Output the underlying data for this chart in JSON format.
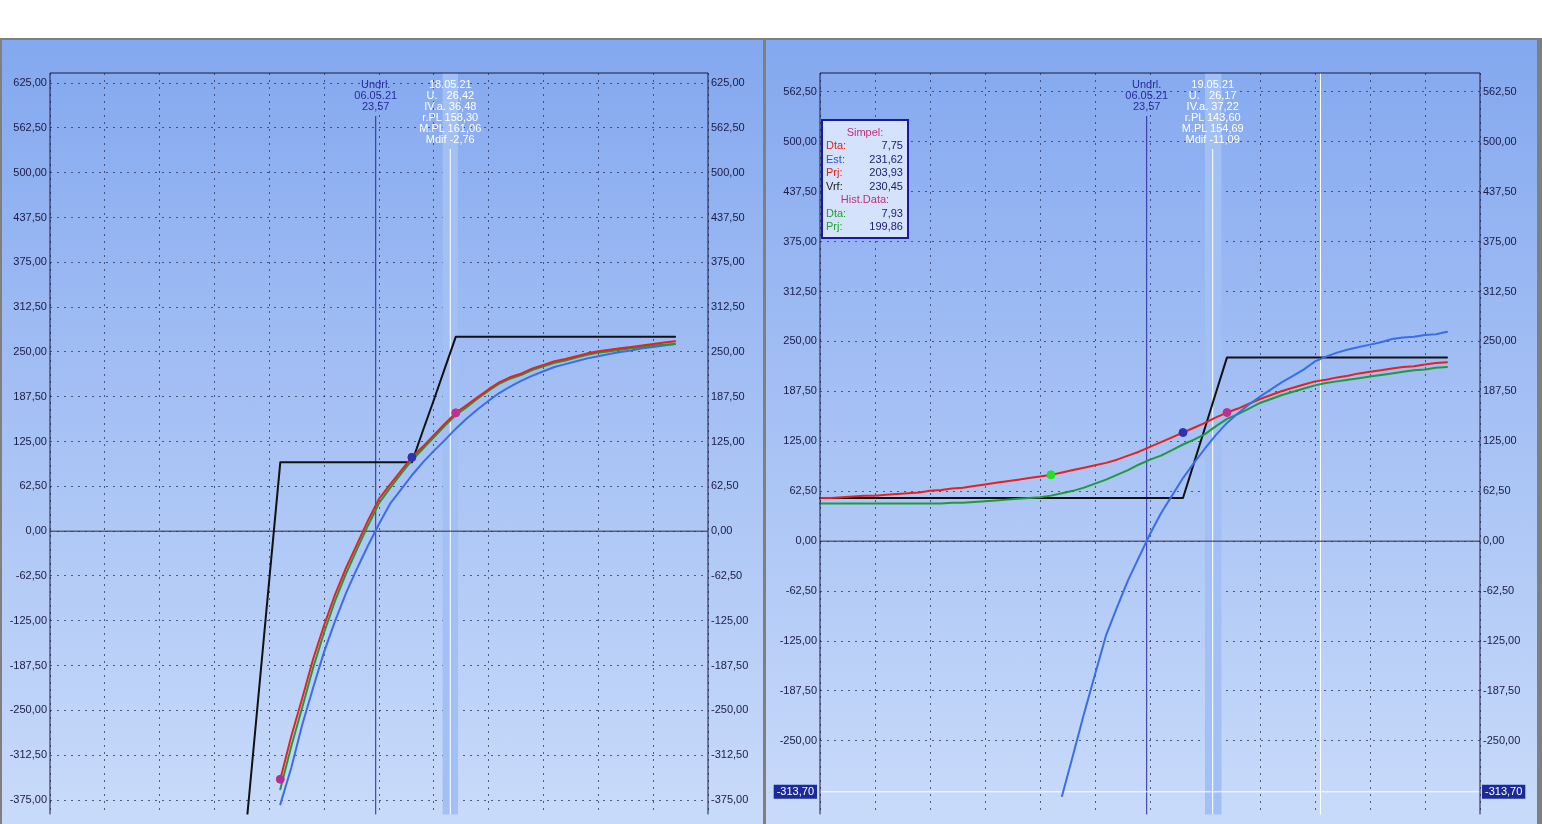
{
  "chart_data": [
    {
      "type": "line",
      "categories": [
        null,
        null,
        null,
        null,
        null,
        null,
        null,
        null,
        null,
        null,
        null,
        null,
        null,
        null,
        null,
        null,
        null,
        null,
        null,
        null,
        null,
        null,
        null,
        null,
        null,
        null,
        null,
        null,
        null,
        null,
        null,
        null,
        null,
        null,
        null,
        null,
        null,
        null,
        null,
        null,
        null,
        null,
        null,
        null,
        null,
        null,
        null,
        null,
        null,
        null,
        null,
        null,
        null,
        null,
        null,
        null,
        null,
        null,
        null,
        null,
        null
      ],
      "ylim": [
        -395,
        639
      ],
      "yticks": [
        {
          "value": 625,
          "label": "625,00"
        },
        {
          "value": 562.5,
          "label": "562,50"
        },
        {
          "value": 500,
          "label": "500,00"
        },
        {
          "value": 437.5,
          "label": "437,50"
        },
        {
          "value": 375,
          "label": "375,00"
        },
        {
          "value": 312.5,
          "label": "312,50"
        },
        {
          "value": 250,
          "label": "250,00"
        },
        {
          "value": 187.5,
          "label": "187,50"
        },
        {
          "value": 125,
          "label": "125,00"
        },
        {
          "value": 62.5,
          "label": "62,50"
        },
        {
          "value": 0,
          "label": "0,00"
        },
        {
          "value": -62.5,
          "label": "-62,50"
        },
        {
          "value": -125,
          "label": "-125,00"
        },
        {
          "value": -187.5,
          "label": "-187,50"
        },
        {
          "value": -250,
          "label": "-250,00"
        },
        {
          "value": -312.5,
          "label": "-312,50"
        },
        {
          "value": -375,
          "label": "-375,00"
        }
      ],
      "y2lim": [
        -395,
        639
      ],
      "y2ticks": [
        {
          "value": 625,
          "label": "625,00"
        },
        {
          "value": 562.5,
          "label": "562,50"
        },
        {
          "value": 500,
          "label": "500,00"
        },
        {
          "value": 437.5,
          "label": "437,50"
        },
        {
          "value": 375,
          "label": "375,00"
        },
        {
          "value": 312.5,
          "label": "312,50"
        },
        {
          "value": 250,
          "label": "250,00"
        },
        {
          "value": 187.5,
          "label": "187,50"
        },
        {
          "value": 125,
          "label": "125,00"
        },
        {
          "value": 62.5,
          "label": "62,50"
        },
        {
          "value": 0,
          "label": "0,00"
        },
        {
          "value": -62.5,
          "label": "-62,50"
        },
        {
          "value": -125,
          "label": "-125,00"
        },
        {
          "value": -187.5,
          "label": "-187,50"
        },
        {
          "value": -250,
          "label": "-250,00"
        },
        {
          "value": -312.5,
          "label": "-312,50"
        },
        {
          "value": -375,
          "label": "-375,00"
        }
      ],
      "grid": true,
      "marker": "none",
      "line_style": "solid",
      "series": [
        {
          "color": "#111111",
          "values": [
            null,
            null,
            null,
            null,
            null,
            null,
            null,
            null,
            null,
            null,
            null,
            null,
            null,
            null,
            null,
            null,
            null,
            null,
            -395,
            -231,
            -67,
            96,
            96,
            96,
            96,
            96,
            96,
            96,
            96,
            96,
            96,
            96,
            96,
            96,
            140,
            183,
            227,
            271,
            271,
            271,
            271,
            271,
            271,
            271,
            271,
            271,
            271,
            271,
            271,
            271,
            271,
            271,
            271,
            271,
            271,
            271,
            271,
            271,
            null,
            null,
            null
          ]
        },
        {
          "color": "#3a6ee8",
          "values": [
            null,
            null,
            null,
            null,
            null,
            null,
            null,
            null,
            null,
            null,
            null,
            null,
            null,
            null,
            null,
            null,
            null,
            null,
            null,
            null,
            null,
            -381,
            -330,
            -270,
            -218,
            -168,
            -125,
            -86,
            -52,
            -20,
            10,
            38,
            58,
            78,
            96,
            112,
            127,
            143,
            157,
            170,
            182,
            193,
            202,
            210,
            217,
            223,
            229,
            233,
            237,
            241,
            244,
            247,
            250,
            252,
            255,
            257,
            259,
            261,
            null,
            null,
            null
          ]
        },
        {
          "color": "#1f9a3a",
          "values": [
            null,
            null,
            null,
            null,
            null,
            null,
            null,
            null,
            null,
            null,
            null,
            null,
            null,
            null,
            null,
            null,
            null,
            null,
            null,
            null,
            null,
            -360,
            -300,
            -246,
            -190,
            -141,
            -97,
            -59,
            -25,
            8,
            39,
            60,
            80,
            99,
            115,
            131,
            147,
            162,
            173,
            185,
            196,
            206,
            213,
            218,
            225,
            230,
            235,
            238,
            242,
            246,
            249,
            251,
            253,
            255,
            257,
            259,
            260,
            261,
            null,
            null,
            null
          ]
        },
        {
          "color": "#e8201e",
          "values": [
            null,
            null,
            null,
            null,
            null,
            null,
            null,
            null,
            null,
            null,
            null,
            null,
            null,
            null,
            null,
            null,
            null,
            null,
            null,
            null,
            null,
            -346,
            -286,
            -233,
            -178,
            -131,
            -88,
            -51,
            -18,
            15,
            45,
            65,
            84,
            103,
            118,
            134,
            150,
            165,
            176,
            187,
            198,
            208,
            215,
            220,
            227,
            232,
            237,
            240,
            244,
            248,
            251,
            253,
            255,
            257,
            259,
            261,
            263,
            265,
            null,
            null,
            null
          ]
        },
        {
          "type": "scatter",
          "marker": "circle",
          "values": [
            null,
            null,
            null,
            null,
            null,
            null,
            null,
            null,
            null,
            null,
            null,
            null,
            null,
            null,
            null,
            null,
            null,
            null,
            null,
            null,
            null,
            -346,
            null,
            null,
            null,
            null,
            null,
            null,
            null,
            null,
            null,
            null,
            null,
            103,
            null,
            null,
            null,
            165,
            null,
            null,
            null,
            null,
            null,
            null,
            null,
            null,
            null,
            null,
            null,
            null,
            null,
            null,
            null,
            null,
            null,
            null,
            null,
            null,
            null,
            null,
            null
          ],
          "colors": [
            null,
            null,
            null,
            null,
            null,
            null,
            null,
            null,
            null,
            null,
            null,
            null,
            null,
            null,
            null,
            null,
            null,
            null,
            null,
            null,
            null,
            "#b03090",
            null,
            null,
            null,
            null,
            null,
            null,
            null,
            null,
            null,
            null,
            null,
            "#3030b0",
            null,
            null,
            null,
            "#c03090",
            null,
            null,
            null,
            null,
            null,
            null,
            null,
            null,
            null,
            null,
            null,
            null,
            null,
            null,
            null,
            null,
            null,
            null,
            null,
            null,
            null,
            null,
            null
          ]
        }
      ],
      "ref_lines": [
        {
          "axis": "y",
          "value": 0,
          "color": "#303030"
        }
      ],
      "annotations": [
        "Undrl.\n06.05.21\n23,57",
        "18.05.21\nU.   26,42\nIV.a. 36,48\nr.PL 158,30\nM.PL 161,06\nMdif -2,76"
      ]
    },
    {
      "type": "line",
      "categories": [
        null,
        null,
        null,
        null,
        null,
        null,
        null,
        null,
        null,
        null,
        null,
        null,
        null,
        null,
        null,
        null,
        null,
        null,
        null,
        null,
        null,
        null,
        null,
        null,
        null,
        null,
        null,
        null,
        null,
        null,
        null,
        null,
        null,
        null,
        null,
        null,
        null,
        null,
        null,
        null,
        null,
        null,
        null,
        null,
        null,
        null,
        null,
        null,
        null,
        null,
        null,
        null,
        null,
        null,
        null,
        null,
        null,
        null,
        null,
        null,
        null
      ],
      "ylim": [
        -342,
        586
      ],
      "yticks": [
        {
          "value": 562.5,
          "label": "562,50"
        },
        {
          "value": 500,
          "label": "500,00"
        },
        {
          "value": 437.5,
          "label": "437,50"
        },
        {
          "value": 375,
          "label": "375,00"
        },
        {
          "value": 312.5,
          "label": "312,50"
        },
        {
          "value": 250,
          "label": "250,00"
        },
        {
          "value": 187.5,
          "label": "187,50"
        },
        {
          "value": 125,
          "label": "125,00"
        },
        {
          "value": 62.5,
          "label": "62,50"
        },
        {
          "value": 0,
          "label": "0,00"
        },
        {
          "value": -62.5,
          "label": "-62,50"
        },
        {
          "value": -125,
          "label": "-125,00"
        },
        {
          "value": -187.5,
          "label": "-187,50"
        },
        {
          "value": -250,
          "label": "-250,00"
        }
      ],
      "y2lim": [
        -342,
        586
      ],
      "y2ticks": [
        {
          "value": 562.5,
          "label": "562,50"
        },
        {
          "value": 500,
          "label": "500,00"
        },
        {
          "value": 437.5,
          "label": "437,50"
        },
        {
          "value": 375,
          "label": "375,00"
        },
        {
          "value": 312.5,
          "label": "312,50"
        },
        {
          "value": 250,
          "label": "250,00"
        },
        {
          "value": 187.5,
          "label": "187,50"
        },
        {
          "value": 125,
          "label": "125,00"
        },
        {
          "value": 62.5,
          "label": "62,50"
        },
        {
          "value": 0,
          "label": "0,00"
        },
        {
          "value": -62.5,
          "label": "-62,50"
        },
        {
          "value": -125,
          "label": "-125,00"
        },
        {
          "value": -187.5,
          "label": "-187,50"
        },
        {
          "value": -250,
          "label": "-250,00"
        }
      ],
      "grid": true,
      "marker": "none",
      "line_style": "solid",
      "series": [
        {
          "color": "#111111",
          "values": [
            54,
            54,
            54,
            54,
            54,
            54,
            54,
            54,
            54,
            54,
            54,
            54,
            54,
            54,
            54,
            54,
            54,
            54,
            54,
            54,
            54,
            54,
            54,
            54,
            54,
            54,
            54,
            54,
            54,
            54,
            54,
            54,
            54,
            54,
            98,
            142,
            186,
            230,
            230,
            230,
            230,
            230,
            230,
            230,
            230,
            230,
            230,
            230,
            230,
            230,
            230,
            230,
            230,
            230,
            230,
            230,
            230,
            230,
            null,
            null,
            null
          ]
        },
        {
          "color": "#1f9a3a",
          "values": [
            47,
            47,
            47,
            47,
            47,
            47,
            47,
            47,
            47,
            47,
            47,
            47,
            48,
            48,
            49,
            50,
            51,
            52,
            53,
            54,
            55,
            57,
            60,
            63,
            67,
            72,
            77,
            83,
            89,
            96,
            102,
            107,
            114,
            121,
            127,
            134,
            144,
            153,
            159,
            166,
            173,
            178,
            183,
            187,
            191,
            195,
            198,
            200,
            202,
            204,
            206,
            208,
            210,
            212,
            214,
            215,
            217,
            218,
            null,
            null,
            null
          ]
        },
        {
          "color": "#e8201e",
          "values": [
            54,
            54,
            55,
            56,
            57,
            57,
            58,
            59,
            60,
            61,
            63,
            64,
            66,
            67,
            69,
            71,
            73,
            75,
            77,
            79,
            81,
            83,
            86,
            89,
            92,
            95,
            98,
            102,
            107,
            112,
            118,
            124,
            130,
            136,
            142,
            148,
            155,
            161,
            166,
            172,
            178,
            183,
            188,
            192,
            196,
            200,
            202,
            205,
            207,
            210,
            212,
            214,
            216,
            218,
            219,
            221,
            223,
            224,
            null,
            null,
            null
          ]
        },
        {
          "color": "#3a6ee8",
          "values": [
            null,
            null,
            null,
            null,
            null,
            null,
            null,
            null,
            null,
            null,
            null,
            null,
            null,
            null,
            null,
            null,
            null,
            null,
            null,
            null,
            null,
            null,
            -319,
            -268,
            -216,
            -167,
            -118,
            -83,
            -49,
            -20,
            9,
            35,
            57,
            79,
            98,
            116,
            133,
            148,
            160,
            171,
            181,
            190,
            199,
            207,
            215,
            225,
            231,
            236,
            240,
            243,
            246,
            249,
            253,
            255,
            256,
            258,
            259,
            262,
            null,
            null,
            null
          ]
        },
        {
          "type": "scatter",
          "marker": "circle",
          "values": [
            null,
            null,
            null,
            null,
            null,
            null,
            null,
            null,
            null,
            null,
            null,
            null,
            null,
            null,
            null,
            null,
            null,
            null,
            null,
            null,
            null,
            83,
            null,
            null,
            null,
            null,
            null,
            null,
            null,
            null,
            null,
            null,
            null,
            136,
            null,
            null,
            null,
            161,
            null,
            null,
            null,
            null,
            null,
            null,
            null,
            null,
            null,
            null,
            null,
            null,
            null,
            null,
            null,
            null,
            null,
            null,
            null,
            null,
            null,
            null,
            null
          ],
          "colors": [
            null,
            null,
            null,
            null,
            null,
            null,
            null,
            null,
            null,
            null,
            null,
            null,
            null,
            null,
            null,
            null,
            null,
            null,
            null,
            null,
            null,
            "#22e022",
            null,
            null,
            null,
            null,
            null,
            null,
            null,
            null,
            null,
            null,
            null,
            "#3030b0",
            null,
            null,
            null,
            "#c03090",
            null,
            null,
            null,
            null,
            null,
            null,
            null,
            null,
            null,
            null,
            null,
            null,
            null,
            null,
            null,
            null,
            null,
            null,
            null,
            null,
            null,
            null,
            null
          ]
        }
      ],
      "ref_lines": [
        {
          "axis": "y",
          "value": 0,
          "color": "#303030"
        },
        {
          "axis": "y",
          "value": -313.7,
          "label": "-313,70",
          "color": "#ffffff"
        }
      ],
      "annotations": [
        "Undrl.\n06.05.21\n23,57",
        "19.05.21\nU.   26,17\nIV.a. 37,22\nr.PL 143,60\nM.PL 154,69\nMdif -11,09",
        "Simpel:",
        "Dta: 7,75",
        "Est: 231,62",
        "Prj: 203,93",
        "Vrf: 230,45",
        "Hist.Data:",
        "Dta: 7,93",
        "Prj: 199,86"
      ]
    }
  ]
}
